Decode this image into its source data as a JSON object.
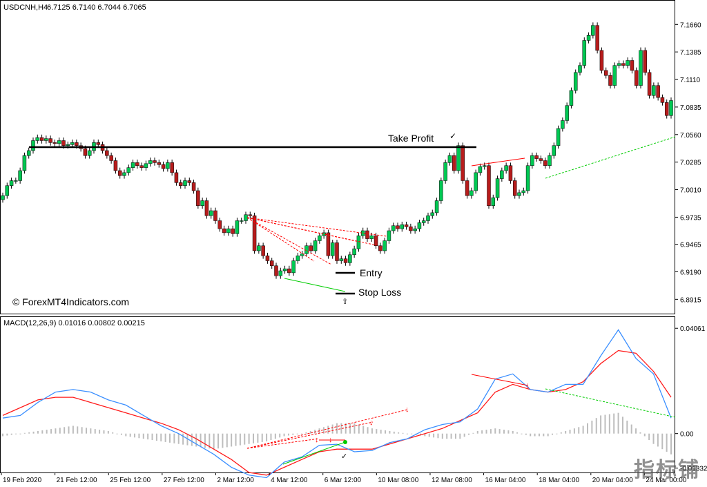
{
  "header": {
    "symbol": "USDCNH,H4",
    "ohlc": "6.7125 6.7140 6.7044 6.7065"
  },
  "watermark": "© ForexMT4Indicators.com",
  "corner_logo": "指标铺",
  "annotations": {
    "take_profit": "Take Profit",
    "entry": "Entry",
    "stop_loss": "Stop Loss",
    "check_mark": "✓",
    "arrow_up": "⇧"
  },
  "colors": {
    "bull": "#00c853",
    "bear": "#b71c1c",
    "macd_line": "#3b8fff",
    "signal_line": "#ff1a1a",
    "histogram": "#bdbdbd",
    "divergence": "#ff0000",
    "bull_divergence": "#00cc00"
  },
  "chart_data": [
    {
      "type": "candlestick",
      "title": "USDCNH,H4",
      "ylim": [
        6.88,
        7.18
      ],
      "y_ticks": [
        "7.1660",
        "7.1385",
        "7.1110",
        "7.0835",
        "7.0560",
        "7.0285",
        "7.0010",
        "6.9735",
        "6.9465",
        "6.9190",
        "6.8915"
      ],
      "grid": false,
      "series": [
        {
          "name": "price",
          "close": [
            6.995,
            7.005,
            7.01,
            7.01,
            7.02,
            7.035,
            7.04,
            7.05,
            7.053,
            7.05,
            7.052,
            7.048,
            7.047,
            7.05,
            7.045,
            7.046,
            7.048,
            7.045,
            7.042,
            7.035,
            7.04,
            7.048,
            7.046,
            7.04,
            7.035,
            7.03,
            7.02,
            7.015,
            7.018,
            7.023,
            7.028,
            7.025,
            7.023,
            7.027,
            7.03,
            7.028,
            7.026,
            7.022,
            7.028,
            7.018,
            7.008,
            7.005,
            7.01,
            7.008,
            7.0,
            6.985,
            6.99,
            6.975,
            6.98,
            6.97,
            6.962,
            6.958,
            6.962,
            6.957,
            6.97,
            6.97,
            6.976,
            6.975,
            6.94,
            6.945,
            6.935,
            6.93,
            6.925,
            6.915,
            6.92,
            6.922,
            6.918,
            6.93,
            6.935,
            6.937,
            6.945,
            6.94,
            6.95,
            6.955,
            6.958,
            6.935,
            6.948,
            6.93,
            6.932,
            6.928,
            6.936,
            6.942,
            6.955,
            6.96,
            6.952,
            6.955,
            6.945,
            6.94,
            6.95,
            6.96,
            6.965,
            6.962,
            6.966,
            6.964,
            6.96,
            6.962,
            6.968,
            6.97,
            6.975,
            6.978,
            6.99,
            7.01,
            7.028,
            7.035,
            7.02,
            7.045,
            7.01,
            6.995,
            7.0,
            7.018,
            7.024,
            7.025,
            6.985,
            6.993,
            7.012,
            7.02,
            7.025,
            7.01,
            6.995,
            6.998,
            7.0,
            7.025,
            7.035,
            7.032,
            7.03,
            7.025,
            7.035,
            7.045,
            7.062,
            7.07,
            7.085,
            7.1,
            7.118,
            7.125,
            7.15,
            7.155,
            7.165,
            7.14,
            7.12,
            7.115,
            7.105,
            7.125,
            7.127,
            7.125,
            7.13,
            7.12,
            7.105,
            7.14,
            7.118,
            7.095,
            7.105,
            7.093,
            7.088,
            7.075,
            7.09
          ]
        }
      ],
      "x_labels": [
        "19 Feb 2020",
        "21 Feb 12:00",
        "25 Feb 12:00",
        "27 Feb 12:00",
        "2 Mar 12:00",
        "4 Mar 12:00",
        "6 Mar 12:00",
        "10 Mar 08:00",
        "12 Mar 08:00",
        "16 Mar 04:00",
        "18 Mar 04:00",
        "20 Mar 04:00",
        "24 Mar 00:00"
      ],
      "levels": {
        "take_profit": 7.049,
        "entry": 6.926,
        "stop_loss": 6.906
      }
    },
    {
      "type": "macd",
      "title": "MACD(12,26,9) 0.01016 0.00802 0.00215",
      "ylim": [
        -0.015,
        0.042
      ],
      "y_ticks": [
        "0.04061",
        "0.00",
        "-0.01332"
      ],
      "series": [
        {
          "name": "macd",
          "values": [
            0.006,
            0.007,
            0.012,
            0.016,
            0.017,
            0.016,
            0.013,
            0.011,
            0.007,
            0.003,
            0.0,
            -0.004,
            -0.008,
            -0.013,
            -0.016,
            -0.017,
            -0.011,
            -0.009,
            -0.0045,
            -0.0041,
            -0.007,
            -0.0065,
            -0.0035,
            -0.002,
            0.0015,
            0.0035,
            0.0045,
            0.0095,
            0.021,
            0.023,
            0.017,
            0.016,
            0.019,
            0.019,
            0.03,
            0.04,
            0.029,
            0.023,
            0.006
          ]
        },
        {
          "name": "signal",
          "values": [
            0.007,
            0.01,
            0.013,
            0.014,
            0.014,
            0.012,
            0.01,
            0.008,
            0.006,
            0.004,
            0.0015,
            -0.002,
            -0.006,
            -0.01,
            -0.015,
            -0.016,
            -0.013,
            -0.01,
            -0.007,
            -0.006,
            -0.006,
            -0.006,
            -0.004,
            -0.002,
            0.0,
            0.002,
            0.005,
            0.008,
            0.016,
            0.019,
            0.017,
            0.016,
            0.017,
            0.02,
            0.027,
            0.032,
            0.031,
            0.024,
            0.014
          ]
        },
        {
          "name": "histogram",
          "values": [
            -0.001,
            0.0,
            0.001,
            0.002,
            0.003,
            0.002,
            0.001,
            -0.001,
            -0.002,
            -0.003,
            -0.004,
            -0.005,
            -0.006,
            -0.005,
            -0.004,
            -0.003,
            -0.001,
            0.0,
            0.002,
            0.004,
            0.004,
            0.002,
            0.001,
            0.0,
            -0.001,
            -0.002,
            -0.002,
            0.001,
            0.002,
            0.001,
            -0.001,
            -0.001,
            0.001,
            0.003,
            0.007,
            0.008,
            0.002,
            -0.004,
            -0.008
          ]
        }
      ]
    }
  ]
}
